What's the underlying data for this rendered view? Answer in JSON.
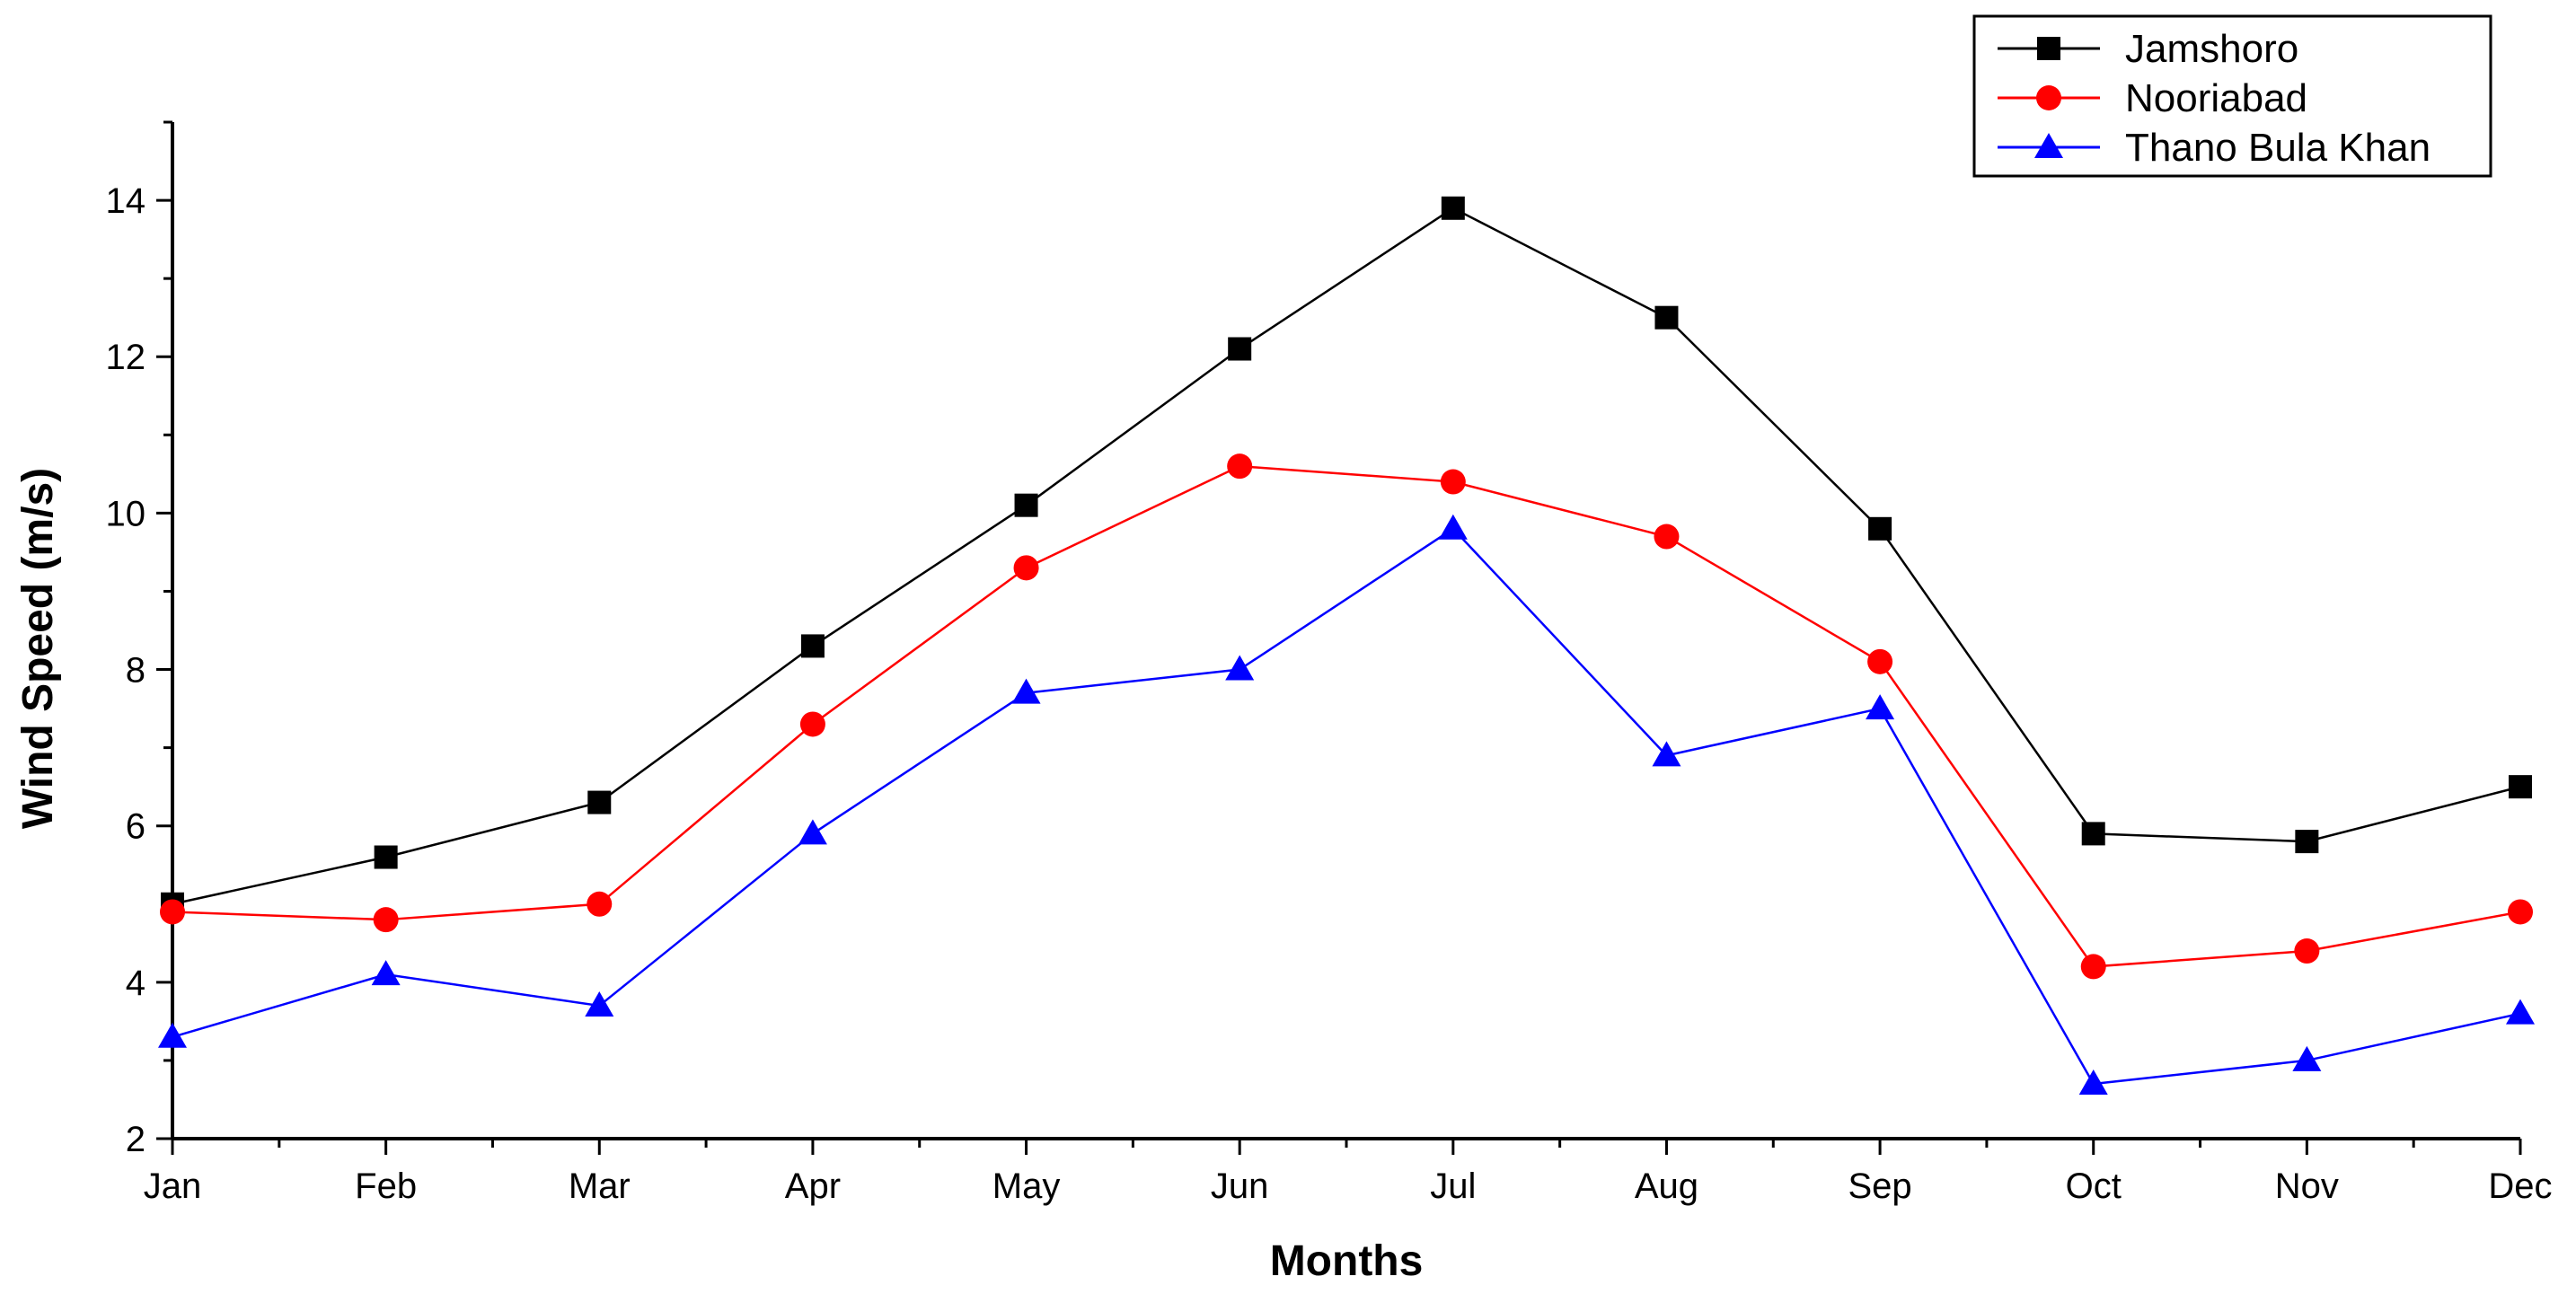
{
  "chart_data": {
    "type": "line",
    "title": "",
    "xlabel": "Months",
    "ylabel": "Wind Speed (m/s)",
    "categories": [
      "Jan",
      "Feb",
      "Mar",
      "Apr",
      "May",
      "Jun",
      "Jul",
      "Aug",
      "Sep",
      "Oct",
      "Nov",
      "Dec"
    ],
    "ylim": [
      2,
      15
    ],
    "yticks": [
      "2",
      "4",
      "6",
      "8",
      "10",
      "12",
      "14"
    ],
    "grid": false,
    "legend_position": "top-right",
    "series": [
      {
        "name": "Jamshoro",
        "color": "#000000",
        "marker": "square",
        "values": [
          5.0,
          5.6,
          6.3,
          8.3,
          10.1,
          12.1,
          13.9,
          12.5,
          9.8,
          5.9,
          5.8,
          6.5
        ]
      },
      {
        "name": "Nooriabad",
        "color": "#ff0000",
        "marker": "circle",
        "values": [
          4.9,
          4.8,
          5.0,
          7.3,
          9.3,
          10.6,
          10.4,
          9.7,
          8.1,
          4.2,
          4.4,
          4.9
        ]
      },
      {
        "name": "Thano Bula Khan",
        "color": "#0000ff",
        "marker": "triangle",
        "values": [
          3.3,
          4.1,
          3.7,
          5.9,
          7.7,
          8.0,
          9.8,
          6.9,
          7.5,
          2.7,
          3.0,
          3.6
        ]
      }
    ]
  }
}
